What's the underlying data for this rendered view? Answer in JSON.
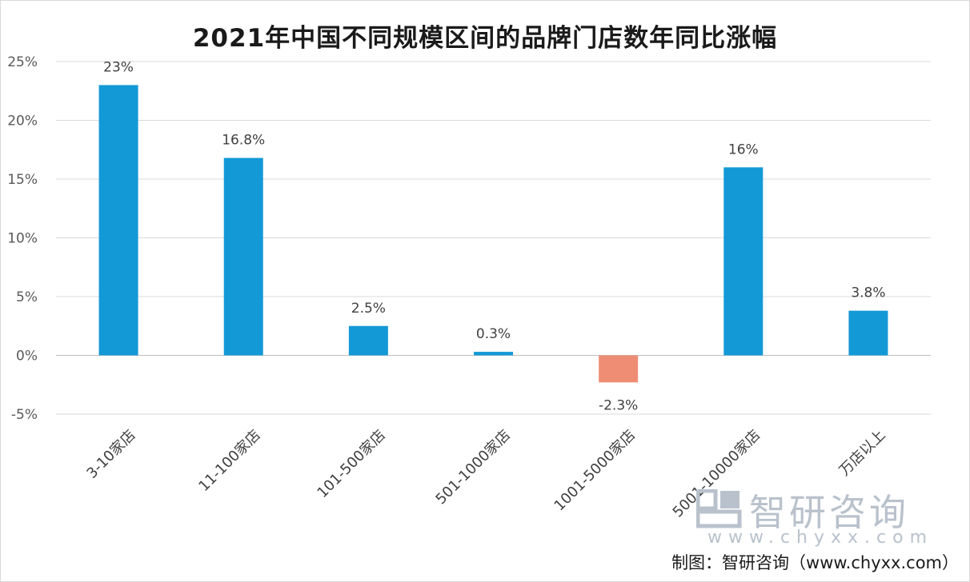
{
  "chart_data": {
    "type": "bar",
    "title": "2021年中国不同规模区间的品牌门店数年同比涨幅",
    "categories": [
      "3-10家店",
      "11-100家店",
      "101-500家店",
      "501-1000家店",
      "1001-5000家店",
      "5001-10000家店",
      "万店以上"
    ],
    "values": [
      23,
      16.8,
      2.5,
      0.3,
      -2.3,
      16,
      3.8
    ],
    "data_labels": [
      "23%",
      "16.8%",
      "2.5%",
      "0.3%",
      "-2.3%",
      "16%",
      "3.8%"
    ],
    "ylim": [
      -5,
      25
    ],
    "yticks": [
      25,
      20,
      15,
      10,
      5,
      0,
      -5
    ],
    "ytick_labels": [
      "25%",
      "20%",
      "15%",
      "10%",
      "5%",
      "0%",
      "-5%"
    ],
    "grid": true,
    "colors": {
      "positive": "#1399d6",
      "negative": "#ef8d74",
      "grid": "#d9d9d9",
      "axis": "#bfbfbf"
    }
  },
  "watermark": {
    "name": "智研咨询",
    "url": "www.chyxx.com"
  },
  "source": "制图：智研咨询（www.chyxx.com）"
}
